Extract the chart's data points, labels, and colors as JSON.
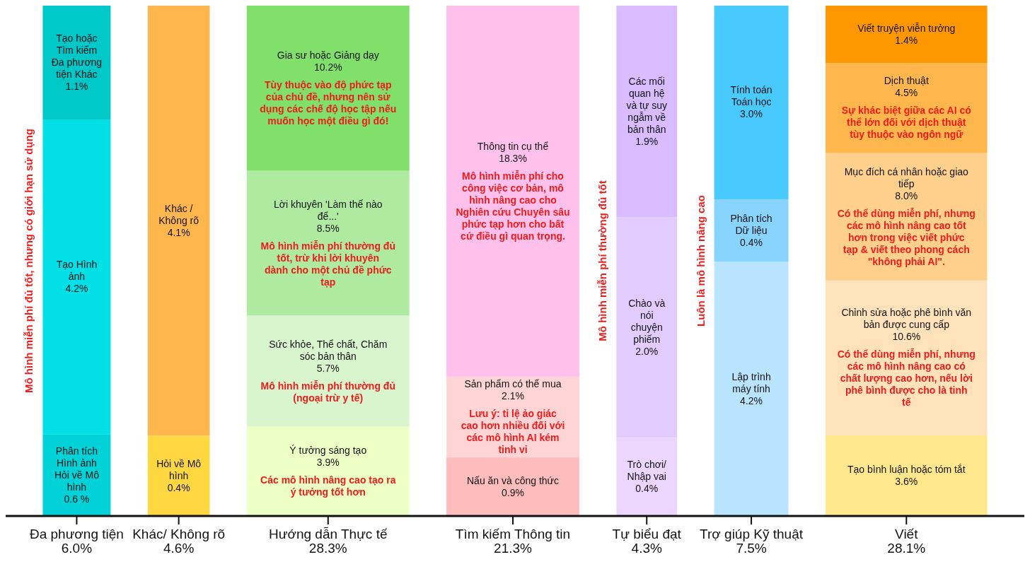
{
  "chart_data": {
    "type": "other",
    "categories": [
      "Đa phương tiện",
      "Khác/ Không rõ",
      "Hướng dẫn Thực tế",
      "Tìm kiếm Thông tin",
      "Tự biểu đạt",
      "Trợ giúp Kỹ thuật",
      "Viết"
    ],
    "values": [
      6.0,
      4.6,
      28.3,
      21.3,
      4.3,
      7.5,
      28.1
    ],
    "value_labels": [
      "6.0%",
      "4.6%",
      "28.3%",
      "21.3%",
      "4.3%",
      "7.5%",
      "28.1%"
    ],
    "series": [
      {
        "name": "Phân tích Hình ảnh Hỏi về Mô hình",
        "color": "#00d2d8",
        "values": [
          0.6,
          null,
          null,
          null,
          null,
          null,
          null
        ],
        "value_labels": [
          "0.6 %",
          null,
          null,
          null,
          null,
          null,
          null
        ]
      },
      {
        "name": "Tạo Hình ảnh",
        "color": "#00e0e6",
        "values": [
          4.2,
          null,
          null,
          null,
          null,
          null,
          null
        ],
        "value_labels": [
          "4.2%",
          null,
          null,
          null,
          null,
          null,
          null
        ]
      },
      {
        "name": "Tạo hoặc Tìm kiếm Đa phương tiện Khác",
        "color": "#00c8c8",
        "values": [
          1.1,
          null,
          null,
          null,
          null,
          null,
          null
        ],
        "value_labels": [
          "1.1%",
          null,
          null,
          null,
          null,
          null,
          null
        ]
      },
      {
        "name": "Hỏi về Mô hình",
        "color": "#ffd740",
        "values": [
          null,
          0.4,
          null,
          null,
          null,
          null,
          null
        ],
        "value_labels": [
          null,
          "0.4%",
          null,
          null,
          null,
          null,
          null
        ]
      },
      {
        "name": "Khác / Không rõ",
        "color": "#ffb74d",
        "values": [
          null,
          4.1,
          null,
          null,
          null,
          null,
          null
        ],
        "value_labels": [
          null,
          "4.1%",
          null,
          null,
          null,
          null,
          null
        ]
      },
      {
        "name": "Ý tưởng sáng tạo",
        "color": "#ecffc4",
        "values": [
          null,
          null,
          3.9,
          null,
          null,
          null,
          null
        ],
        "value_labels": [
          null,
          null,
          "3.9%",
          null,
          null,
          null,
          null
        ]
      },
      {
        "name": "Sức khỏe, Thể chất, Chăm sóc bản thân",
        "color": "#d9f5cd",
        "values": [
          null,
          null,
          5.7,
          null,
          null,
          null,
          null
        ],
        "value_labels": [
          null,
          null,
          "5.7%",
          null,
          null,
          null,
          null
        ]
      },
      {
        "name": "Lời khuyên 'Làm thế nào để...'",
        "color": "#aeeaa0",
        "values": [
          null,
          null,
          8.5,
          null,
          null,
          null,
          null
        ],
        "value_labels": [
          null,
          null,
          "8.5%",
          null,
          null,
          null,
          null
        ]
      },
      {
        "name": "Gia sư hoặc Giảng dạy",
        "color": "#80e06a",
        "values": [
          null,
          null,
          10.2,
          null,
          null,
          null,
          null
        ],
        "value_labels": [
          null,
          null,
          "10.2%",
          null,
          null,
          null,
          null
        ]
      },
      {
        "name": "Nấu ăn và công thức",
        "color": "#ffbcbc",
        "values": [
          null,
          null,
          null,
          0.9,
          null,
          null,
          null
        ],
        "value_labels": [
          null,
          null,
          null,
          "0.9%",
          null,
          null,
          null
        ]
      },
      {
        "name": "Sản phẩm có thể mua",
        "color": "#ffd4d4",
        "values": [
          null,
          null,
          null,
          2.1,
          null,
          null,
          null
        ],
        "value_labels": [
          null,
          null,
          null,
          "2.1%",
          null,
          null,
          null
        ]
      },
      {
        "name": "Thông tin cụ thể",
        "color": "#ffc0ec",
        "values": [
          null,
          null,
          null,
          18.3,
          null,
          null,
          null
        ],
        "value_labels": [
          null,
          null,
          null,
          "18.3%",
          null,
          null,
          null
        ]
      },
      {
        "name": "Trò chơi/ Nhập vai",
        "color": "#ecd6ff",
        "values": [
          null,
          null,
          null,
          null,
          0.4,
          null,
          null
        ],
        "value_labels": [
          null,
          null,
          null,
          null,
          "0.4%",
          null,
          null
        ]
      },
      {
        "name": "Chào và nói chuyện phiếm",
        "color": "#e2ccff",
        "values": [
          null,
          null,
          null,
          null,
          2.0,
          null,
          null
        ],
        "value_labels": [
          null,
          null,
          null,
          null,
          "2.0%",
          null,
          null
        ]
      },
      {
        "name": "Các mối quan hệ và tự suy ngẫm về bản thân",
        "color": "#d8bcff",
        "values": [
          null,
          null,
          null,
          null,
          1.9,
          null,
          null
        ],
        "value_labels": [
          null,
          null,
          null,
          null,
          "1.9%",
          null,
          null
        ]
      },
      {
        "name": "Lập trình máy tính",
        "color": "#b8e4ff",
        "values": [
          null,
          null,
          null,
          null,
          null,
          4.2,
          null
        ],
        "value_labels": [
          null,
          null,
          null,
          null,
          null,
          "4.2%",
          null
        ]
      },
      {
        "name": "Phân tích Dữ liệu",
        "color": "#88d4ff",
        "values": [
          null,
          null,
          null,
          null,
          null,
          0.4,
          null
        ],
        "value_labels": [
          null,
          null,
          null,
          null,
          null,
          "0.4%",
          null
        ]
      },
      {
        "name": "Tính toán Toán học",
        "color": "#48caff",
        "values": [
          null,
          null,
          null,
          null,
          null,
          3.0,
          null
        ],
        "value_labels": [
          null,
          null,
          null,
          null,
          null,
          "3.0%",
          null
        ]
      },
      {
        "name": "Tạo bình luận hoặc tóm tắt",
        "color": "#ffe88c",
        "values": [
          null,
          null,
          null,
          null,
          null,
          null,
          3.6
        ],
        "value_labels": [
          null,
          null,
          null,
          null,
          null,
          null,
          "3.6%"
        ]
      },
      {
        "name": "Chỉnh sửa hoặc phê bình văn bản được cung cấp",
        "color": "#ffe2ba",
        "values": [
          null,
          null,
          null,
          null,
          null,
          null,
          10.6
        ],
        "value_labels": [
          null,
          null,
          null,
          null,
          null,
          null,
          "10.6%"
        ]
      },
      {
        "name": "Mục đích cá nhân hoặc giao tiếp",
        "color": "#ffd08c",
        "values": [
          null,
          null,
          null,
          null,
          null,
          null,
          8.0
        ],
        "value_labels": [
          null,
          null,
          null,
          null,
          null,
          null,
          "8.0%"
        ]
      },
      {
        "name": "Dịch thuật",
        "color": "#ffb74d",
        "values": [
          null,
          null,
          null,
          null,
          null,
          null,
          4.5
        ],
        "value_labels": [
          null,
          null,
          null,
          null,
          null,
          null,
          "4.5%"
        ]
      },
      {
        "name": "Viết truyện viễn tưởng",
        "color": "#ff9800",
        "values": [
          null,
          null,
          null,
          null,
          null,
          null,
          1.4
        ],
        "value_labels": [
          null,
          null,
          null,
          null,
          null,
          null,
          "1.4%"
        ]
      }
    ],
    "annotations": [
      {
        "text": "Tùy thuộc vào độ phức tạp của chủ đề, nhưng nên sử dụng các chế độ học tập nếu muốn học một điều gì đó!",
        "x": "Gia sư hoặc Giảng dạy"
      },
      {
        "text": "Mô hình miễn phí thường đủ tốt, trừ khi lời khuyên dành cho một chủ đề phức tạp",
        "x": "Lời khuyên 'Làm thế nào để...'"
      },
      {
        "text": "Mô hình miễn phí thường đủ (ngoại trừ y tế)",
        "x": "Sức khỏe, Thể chất, Chăm sóc bản thân"
      },
      {
        "text": "Các mô hình nâng cao tạo ra ý tưởng tốt hơn",
        "x": "Ý tưởng sáng tạo"
      },
      {
        "text": "Mô hình miễn phí cho công việc cơ bản, mô hình nâng cao cho Nghiên cứu Chuyên sâu phức tạp hơn cho bất cứ điều gì quan trọng.",
        "x": "Thông tin cụ thể"
      },
      {
        "text": "Lưu ý: tỉ lệ ảo giác cao hơn nhiều đối với các mô hình AI kém tinh vi",
        "x": "Sản phẩm có thể mua"
      },
      {
        "text": "Sự khác biệt giữa các AI có thể lớn đối với dịch thuật tùy thuộc vào ngôn ngữ",
        "x": "Dịch thuật"
      },
      {
        "text": "Có thể dùng miễn phí, nhưng các mô hình nâng cao tốt hơn trong việc viết phức tạp & viết theo phong cách \"không phải AI\".",
        "x": "Mục đích cá nhân hoặc giao tiếp"
      },
      {
        "text": "Có thể dùng miễn phí, nhưng các mô hình nâng cao có chất lượng cao hơn, nếu lời phê bình được cho là tinh tế",
        "x": "Chỉnh sửa hoặc phê bình văn bản được cung cấp"
      },
      {
        "text": "Mô hình miễn phí đủ tốt, nhưng có giới hạn sử dụng",
        "x": "Đa phương tiện"
      },
      {
        "text": "Mô hình miễn phí thường đủ tốt",
        "x": "Tự biểu đạt"
      },
      {
        "text": "Luôn là mô hình nâng cao",
        "x": "Trợ giúp Kỹ thuật"
      }
    ]
  }
}
